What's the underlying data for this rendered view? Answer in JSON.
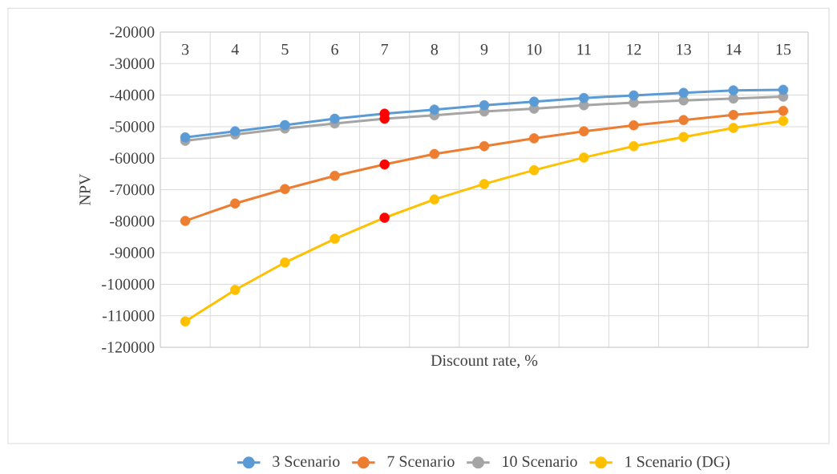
{
  "chart_data": {
    "type": "line",
    "xlabel": "Discount rate, %",
    "ylabel": "NPV",
    "categories": [
      "3",
      "4",
      "5",
      "6",
      "7",
      "8",
      "9",
      "10",
      "11",
      "12",
      "13",
      "14",
      "15"
    ],
    "ylim": [
      -120000,
      -20000
    ],
    "yticks": [
      -120000,
      -110000,
      -100000,
      -90000,
      -80000,
      -70000,
      -60000,
      -50000,
      -40000,
      -30000,
      -20000
    ],
    "grid": true,
    "legend": "bottom",
    "marker": "circle",
    "line_style": "solid",
    "series": [
      {
        "name": "3 Scenario",
        "color": "#5b9bd5",
        "colors": [
          "#5b9bd5",
          "#5b9bd5",
          "#5b9bd5",
          "#5b9bd5",
          "#ff0000",
          "#5b9bd5",
          "#5b9bd5",
          "#5b9bd5",
          "#5b9bd5",
          "#5b9bd5",
          "#5b9bd5",
          "#5b9bd5",
          "#5b9bd5"
        ],
        "values": [
          -53400,
          -51500,
          -49500,
          -47500,
          -45900,
          -44600,
          -43200,
          -42100,
          -40900,
          -40100,
          -39300,
          -38500,
          -38300
        ]
      },
      {
        "name": "7 Scenario",
        "color": "#ed7d31",
        "colors": [
          "#ed7d31",
          "#ed7d31",
          "#ed7d31",
          "#ed7d31",
          "#ff0000",
          "#ed7d31",
          "#ed7d31",
          "#ed7d31",
          "#ed7d31",
          "#ed7d31",
          "#ed7d31",
          "#ed7d31",
          "#ed7d31"
        ],
        "values": [
          -79900,
          -74400,
          -69800,
          -65600,
          -62000,
          -58700,
          -56200,
          -53700,
          -51500,
          -49600,
          -47900,
          -46300,
          -45000
        ]
      },
      {
        "name": "10 Scenario",
        "color": "#a5a5a5",
        "colors": [
          "#a5a5a5",
          "#a5a5a5",
          "#a5a5a5",
          "#a5a5a5",
          "#ff0000",
          "#a5a5a5",
          "#a5a5a5",
          "#a5a5a5",
          "#a5a5a5",
          "#a5a5a5",
          "#a5a5a5",
          "#a5a5a5",
          "#a5a5a5"
        ],
        "values": [
          -54500,
          -52500,
          -50600,
          -49000,
          -47500,
          -46400,
          -45200,
          -44300,
          -43200,
          -42400,
          -41700,
          -41100,
          -40500
        ]
      },
      {
        "name": "1 Scenario (DG)",
        "color": "#ffc000",
        "colors": [
          "#ffc000",
          "#ffc000",
          "#ffc000",
          "#ffc000",
          "#ff0000",
          "#ffc000",
          "#ffc000",
          "#ffc000",
          "#ffc000",
          "#ffc000",
          "#ffc000",
          "#ffc000",
          "#ffc000"
        ],
        "values": [
          -111800,
          -101800,
          -93100,
          -85600,
          -78900,
          -73100,
          -68200,
          -63800,
          -59800,
          -56200,
          -53300,
          -50400,
          -48200
        ]
      }
    ]
  }
}
